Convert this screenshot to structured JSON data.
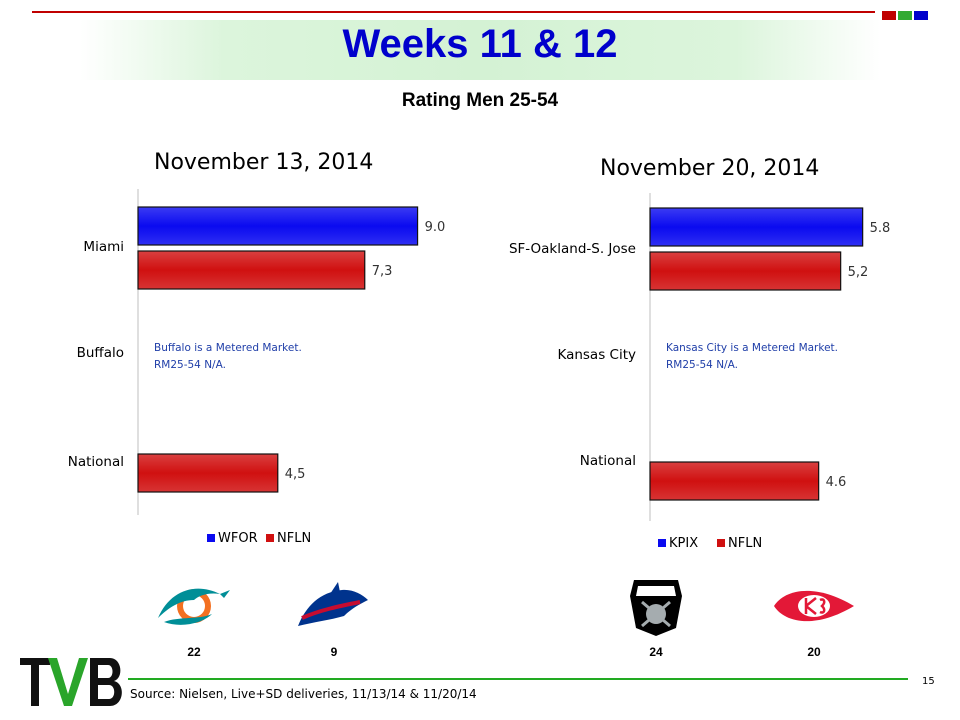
{
  "header": {
    "title": "Weeks 11 & 12",
    "subtitle": "Rating Men 25-54",
    "accent_colors": [
      "#c00000",
      "#33aa33",
      "#0000cc"
    ]
  },
  "charts": [
    {
      "date": "November 13, 2014",
      "note_line1": "Buffalo is a Metered Market.",
      "note_line2": "RM25-54  N/A."
    },
    {
      "date": "November 20, 2014",
      "note_line1": "Kansas City is a Metered Market.",
      "note_line2": "RM25-54  N/A."
    }
  ],
  "chart_data": [
    {
      "type": "bar",
      "orientation": "horizontal",
      "title": "November 13, 2014",
      "categories": [
        "Miami",
        "Buffalo",
        "National"
      ],
      "series": [
        {
          "name": "WFOR",
          "color": "#0a0af0",
          "values": [
            9.0,
            null,
            null
          ],
          "labels": [
            "9.0",
            "",
            ""
          ]
        },
        {
          "name": "NFLN",
          "color": "#d01010",
          "values": [
            7.3,
            null,
            4.5
          ],
          "labels": [
            "7,3",
            "",
            "4,5"
          ]
        }
      ],
      "xlim": [
        0,
        9.4
      ],
      "legend": "bottom"
    },
    {
      "type": "bar",
      "orientation": "horizontal",
      "title": "November 20, 2014",
      "categories": [
        "SF-Oakland-S. Jose",
        "Kansas City",
        "National"
      ],
      "series": [
        {
          "name": "KPIX",
          "color": "#0a0af0",
          "values": [
            5.8,
            null,
            null
          ],
          "labels": [
            "5.8",
            "",
            ""
          ]
        },
        {
          "name": "NFLN",
          "color": "#d01010",
          "values": [
            5.2,
            null,
            4.6
          ],
          "labels": [
            "5,2",
            "",
            "4.6"
          ]
        }
      ],
      "xlim": [
        0,
        6.0
      ],
      "legend": "bottom"
    }
  ],
  "scores": {
    "dolphins": "22",
    "bills": "9",
    "raiders": "24",
    "chiefs": "20"
  },
  "logos": {
    "dolphins": "dolphins-logo-icon",
    "bills": "bills-logo-icon",
    "raiders": "raiders-logo-icon",
    "chiefs": "chiefs-logo-icon",
    "brand": "TVB"
  },
  "footer": {
    "source": "Source: Nielsen, Live+SD deliveries, 11/13/14  & 11/20/14",
    "page": "15"
  }
}
